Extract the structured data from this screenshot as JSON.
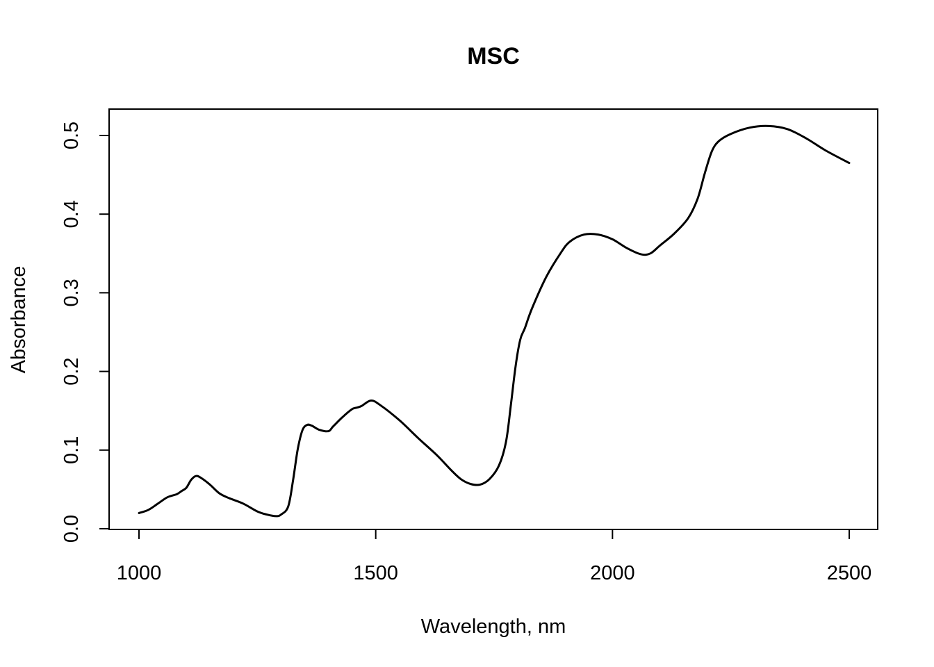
{
  "chart_data": {
    "type": "line",
    "title": "MSC",
    "xlabel": "Wavelength, nm",
    "ylabel": "Absorbance",
    "xlim": [
      1000,
      2500
    ],
    "ylim": [
      0.0,
      0.5
    ],
    "x_ticks": [
      1000,
      1500,
      2000,
      2500
    ],
    "x_tick_labels": [
      "1000",
      "1500",
      "2000",
      "2500"
    ],
    "y_ticks": [
      0.0,
      0.1,
      0.2,
      0.3,
      0.4,
      0.5
    ],
    "y_tick_labels": [
      "0.0",
      "0.1",
      "0.2",
      "0.3",
      "0.4",
      "0.5"
    ],
    "grid": false,
    "legend": "none",
    "series": [
      {
        "color": "#000000",
        "x": [
          1000,
          1020,
          1040,
          1060,
          1080,
          1090,
          1100,
          1110,
          1120,
          1130,
          1150,
          1170,
          1190,
          1220,
          1250,
          1270,
          1290,
          1300,
          1315,
          1325,
          1335,
          1345,
          1355,
          1365,
          1380,
          1400,
          1410,
          1430,
          1450,
          1460,
          1470,
          1490,
          1510,
          1550,
          1590,
          1630,
          1660,
          1680,
          1700,
          1720,
          1740,
          1760,
          1775,
          1785,
          1795,
          1805,
          1815,
          1830,
          1860,
          1890,
          1910,
          1940,
          1970,
          2000,
          2030,
          2060,
          2080,
          2100,
          2130,
          2160,
          2180,
          2195,
          2210,
          2225,
          2250,
          2290,
          2330,
          2370,
          2410,
          2450,
          2500
        ],
        "y": [
          0.02,
          0.024,
          0.032,
          0.04,
          0.044,
          0.048,
          0.052,
          0.062,
          0.067,
          0.065,
          0.056,
          0.045,
          0.039,
          0.032,
          0.022,
          0.018,
          0.016,
          0.018,
          0.028,
          0.06,
          0.1,
          0.125,
          0.132,
          0.131,
          0.126,
          0.124,
          0.13,
          0.142,
          0.152,
          0.154,
          0.156,
          0.163,
          0.157,
          0.138,
          0.115,
          0.093,
          0.074,
          0.063,
          0.057,
          0.056,
          0.063,
          0.08,
          0.11,
          0.155,
          0.205,
          0.24,
          0.255,
          0.28,
          0.32,
          0.35,
          0.365,
          0.374,
          0.374,
          0.368,
          0.357,
          0.349,
          0.35,
          0.36,
          0.375,
          0.395,
          0.42,
          0.452,
          0.48,
          0.493,
          0.502,
          0.51,
          0.512,
          0.508,
          0.496,
          0.481,
          0.465
        ]
      }
    ]
  }
}
